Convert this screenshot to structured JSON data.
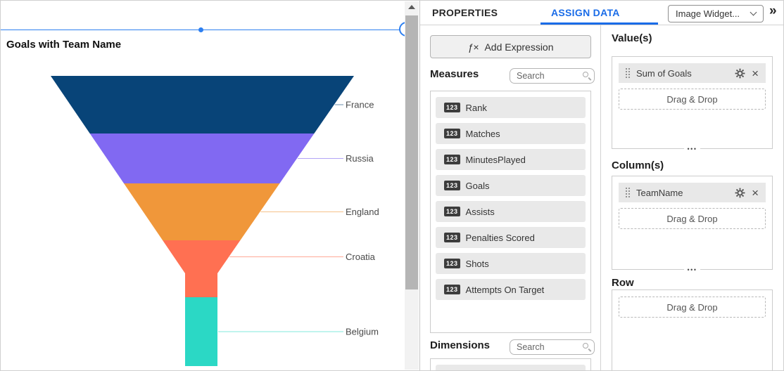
{
  "chart_data": {
    "type": "funnel",
    "title": "Goals with Team Name",
    "categories": [
      "France",
      "Russia",
      "England",
      "Croatia",
      "Belgium"
    ],
    "values": [
      82,
      71,
      81,
      81,
      98
    ],
    "values_basis": "relative segment heights in pixels (no numeric data labels are shown on the chart)",
    "colors": [
      "#084478",
      "#8169f2",
      "#f0973a",
      "#ff7052",
      "#2bd8c5"
    ],
    "label_color": "#4a4a4a",
    "legend": "none",
    "label_position": "right"
  },
  "tabs": {
    "properties": "PROPERTIES",
    "assign_data": "ASSIGN DATA"
  },
  "widget_dropdown": {
    "value": "Image Widget..."
  },
  "collapse_icon": "»",
  "expression_button": {
    "icon": "ƒ×",
    "label": "Add Expression"
  },
  "measures": {
    "title": "Measures",
    "search_placeholder": "Search",
    "field_badge": "123",
    "items": [
      "Rank",
      "Matches",
      "MinutesPlayed",
      "Goals",
      "Assists",
      "Penalties Scored",
      "Shots",
      "Attempts On Target"
    ]
  },
  "dimensions": {
    "title": "Dimensions",
    "search_placeholder": "Search"
  },
  "assignments": {
    "values_section": {
      "title": "Value(s)",
      "chip": "Sum of Goals",
      "drop_label": "Drag & Drop",
      "more": "•••"
    },
    "columns_section": {
      "title": "Column(s)",
      "chip": "TeamName",
      "drop_label": "Drag & Drop",
      "more": "•••"
    },
    "row_section": {
      "title": "Row",
      "drop_label": "Drag & Drop"
    }
  },
  "colors": {
    "selection_blue": "#2d7ff0",
    "active_tab_blue": "#1a6ce8"
  }
}
